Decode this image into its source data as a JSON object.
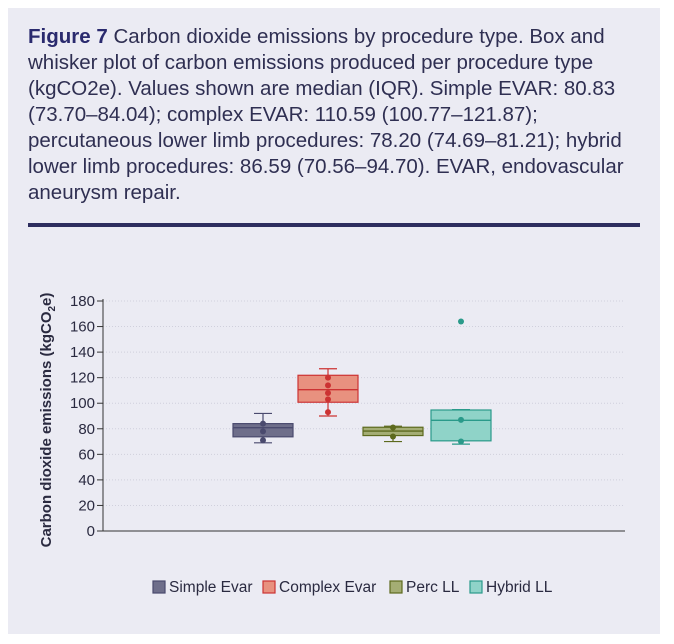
{
  "caption": {
    "label": "Figure 7",
    "text": "Carbon dioxide emissions by procedure type. Box and whisker plot of carbon emissions produced per procedure type (kgCO2e). Values shown are median (IQR). Simple EVAR: 80.83 (73.70–84.04); complex EVAR: 110.59 (100.77–121.87); percutaneous lower limb procedures: 78.20 (74.69–81.21); hybrid lower limb procedures: 86.59 (70.56–94.70). EVAR, endovascular aneurysm repair."
  },
  "chart_data": {
    "type": "box",
    "ylabel_main": "Carbon dioxide emissions (kgCO",
    "ylabel_sub": "2",
    "ylabel_end": "e)",
    "ylim": [
      0,
      180
    ],
    "yticks": [
      0,
      20,
      40,
      60,
      80,
      100,
      120,
      140,
      160,
      180
    ],
    "grid": true,
    "legend_position": "bottom",
    "series": [
      {
        "name": "Simple Evar",
        "color": "#4a4a6e",
        "fill": "#6e6e8a",
        "min": 69,
        "q1": 73.7,
        "median": 80.83,
        "q3": 84.04,
        "max": 92,
        "points": [
          71,
          78,
          84
        ]
      },
      {
        "name": "Complex Evar",
        "color": "#cc3333",
        "fill": "#e8917f",
        "min": 90,
        "q1": 100.77,
        "median": 110.59,
        "q3": 121.87,
        "max": 127,
        "points": [
          93,
          103,
          108,
          114,
          120
        ]
      },
      {
        "name": "Perc LL",
        "color": "#5d6a1e",
        "fill": "#a4ad74",
        "min": 70,
        "q1": 74.69,
        "median": 78.2,
        "q3": 81.21,
        "max": 82,
        "points": [
          74,
          81
        ]
      },
      {
        "name": "Hybrid LL",
        "color": "#2a9a8a",
        "fill": "#8fd3c8",
        "min": 68,
        "q1": 70.56,
        "median": 86.59,
        "q3": 94.7,
        "max": 95,
        "points": [
          70,
          87,
          164
        ]
      }
    ]
  }
}
